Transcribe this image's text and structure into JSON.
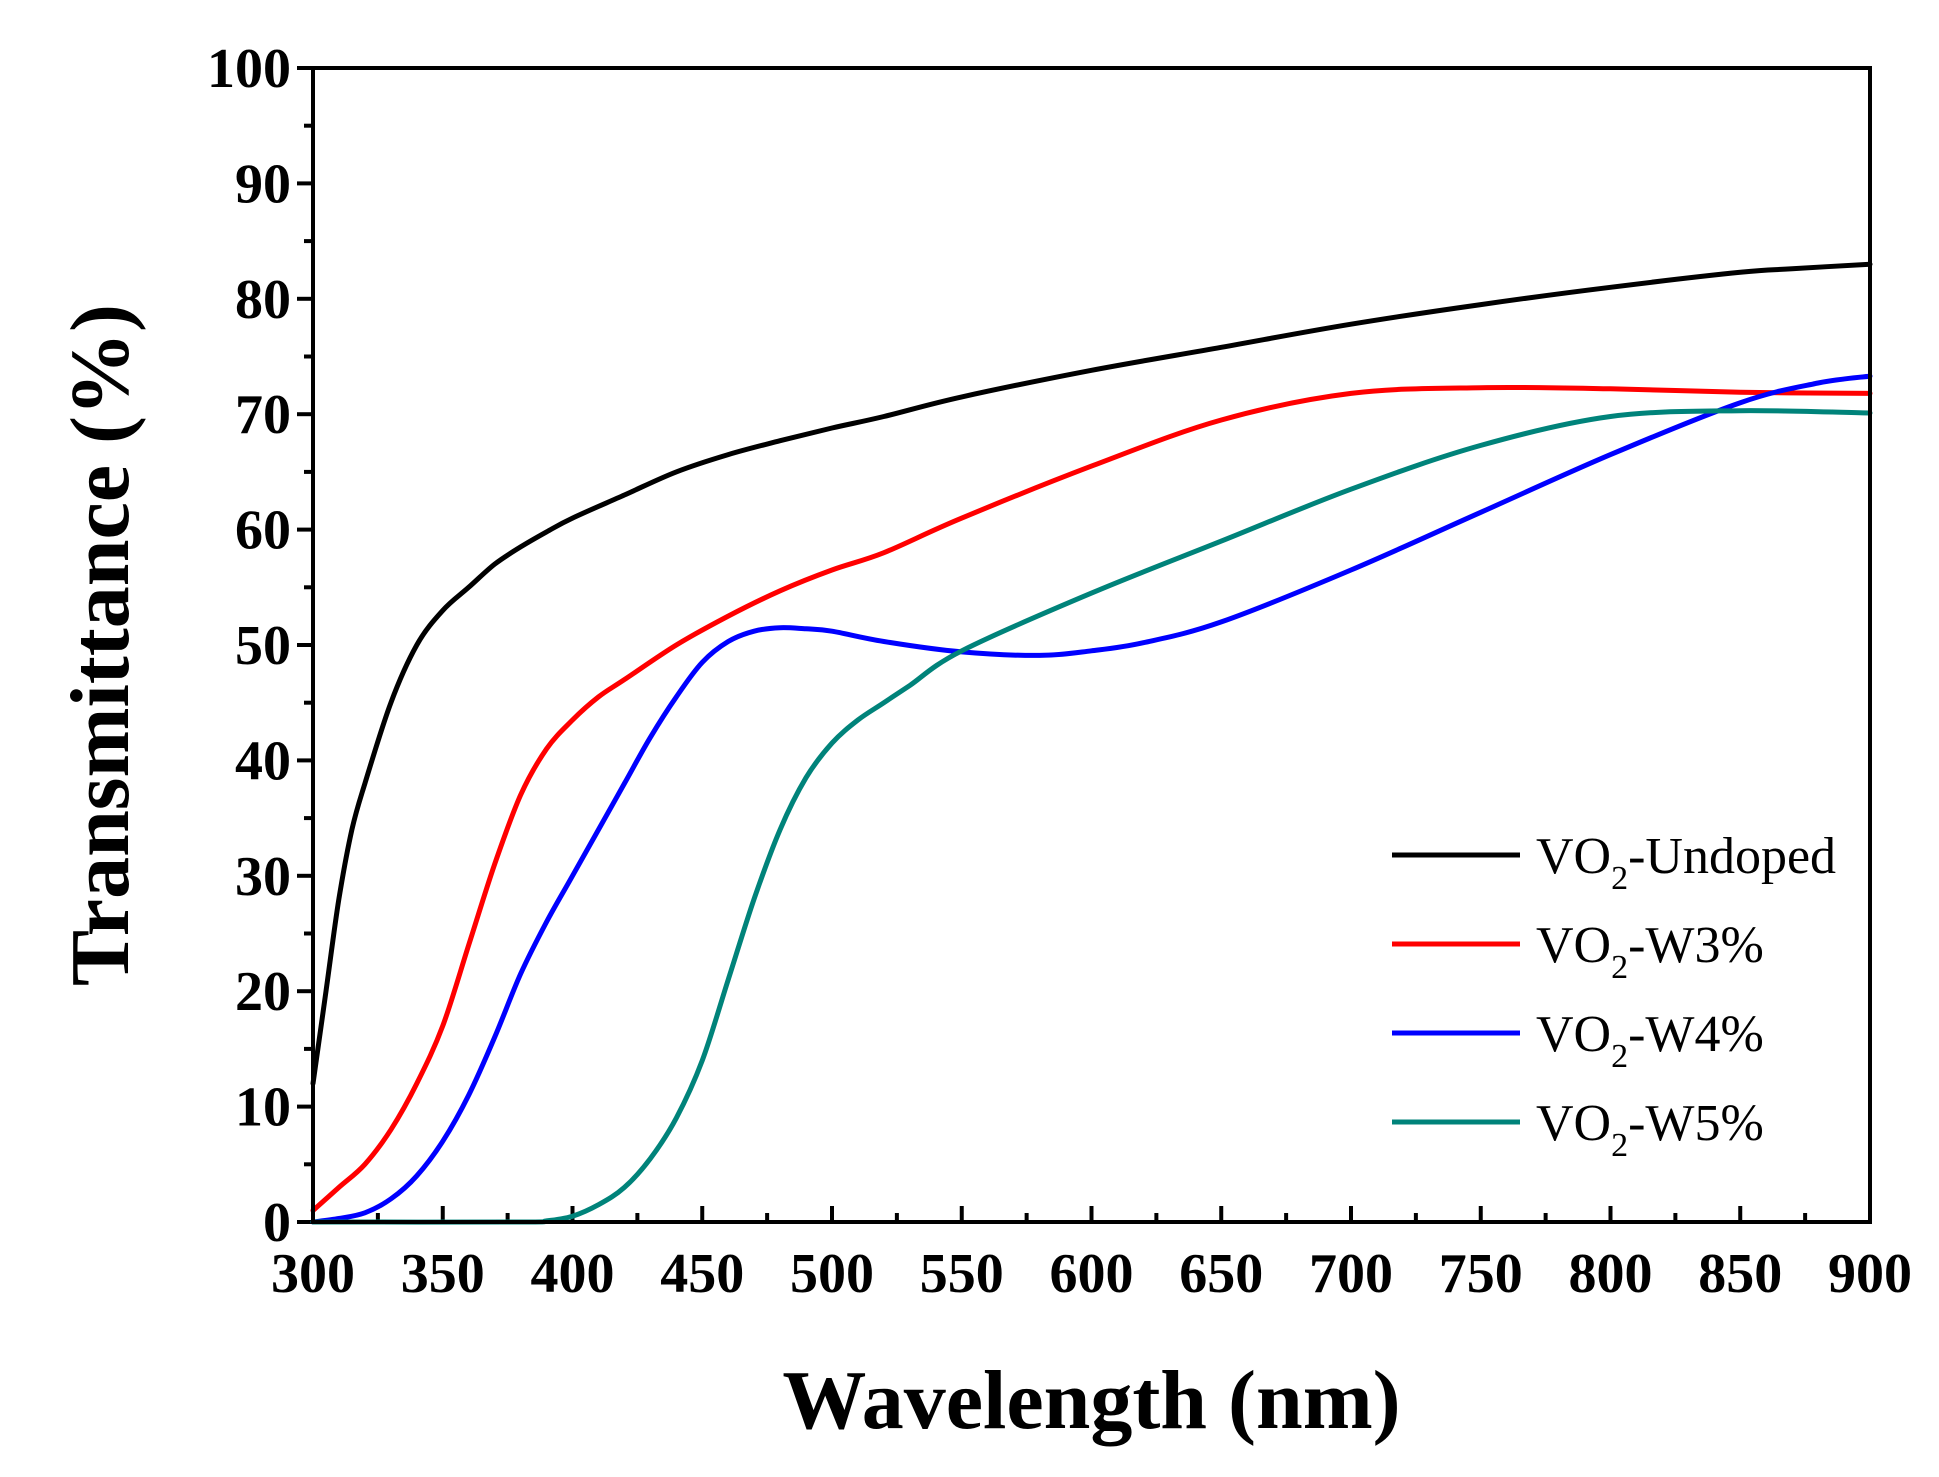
{
  "chart_data": {
    "type": "line",
    "title": "",
    "xlabel": "Wavelength (nm)",
    "ylabel": "Transmittance (%)",
    "xlim": [
      300,
      900
    ],
    "ylim": [
      0,
      100
    ],
    "xticks": [
      300,
      350,
      400,
      450,
      500,
      550,
      600,
      650,
      700,
      750,
      800,
      850,
      900
    ],
    "yticks": [
      0,
      10,
      20,
      30,
      40,
      50,
      60,
      70,
      80,
      90,
      100
    ],
    "x_tick_labels": [
      "300",
      "350",
      "400",
      "450",
      "500",
      "550",
      "600",
      "650",
      "700",
      "750",
      "800",
      "850",
      "900"
    ],
    "y_tick_labels": [
      "0",
      "10",
      "20",
      "30",
      "40",
      "50",
      "60",
      "70",
      "80",
      "90",
      "100"
    ],
    "grid": false,
    "legend_position": "right",
    "series": [
      {
        "name": "VO2-Undoped",
        "label_main": "VO",
        "label_sub": "2",
        "label_suffix": "-Undoped",
        "color": "#000000",
        "x": [
          300,
          305,
          310,
          315,
          320,
          330,
          340,
          350,
          360,
          370,
          380,
          390,
          400,
          420,
          440,
          460,
          480,
          500,
          520,
          550,
          600,
          650,
          700,
          750,
          800,
          850,
          870,
          900
        ],
        "y": [
          12,
          20,
          28,
          34,
          38,
          45,
          50,
          53,
          55,
          57,
          58.5,
          59.8,
          61,
          63,
          65,
          66.5,
          67.7,
          68.8,
          69.8,
          71.5,
          73.8,
          75.8,
          77.8,
          79.5,
          81,
          82.3,
          82.6,
          83
        ]
      },
      {
        "name": "VO2-W3%",
        "label_main": "VO",
        "label_sub": "2",
        "label_suffix": "-W3%",
        "color": "#ff0000",
        "x": [
          300,
          310,
          320,
          330,
          340,
          350,
          360,
          370,
          380,
          390,
          400,
          410,
          420,
          440,
          460,
          480,
          500,
          520,
          550,
          600,
          650,
          700,
          750,
          800,
          850,
          900
        ],
        "y": [
          1,
          3,
          5,
          8,
          12,
          17,
          24,
          31,
          37,
          41,
          43.5,
          45.5,
          47,
          50,
          52.5,
          54.7,
          56.5,
          58,
          61,
          65.5,
          69.5,
          71.8,
          72.3,
          72.2,
          71.9,
          71.8
        ]
      },
      {
        "name": "VO2-W4%",
        "label_main": "VO",
        "label_sub": "2",
        "label_suffix": "-W4%",
        "color": "#0000ff",
        "x": [
          300,
          310,
          320,
          330,
          340,
          350,
          360,
          370,
          380,
          390,
          400,
          410,
          420,
          430,
          440,
          450,
          460,
          470,
          480,
          490,
          500,
          520,
          550,
          580,
          600,
          620,
          650,
          700,
          750,
          800,
          850,
          880,
          900
        ],
        "y": [
          0,
          0.3,
          0.8,
          2,
          4,
          7,
          11,
          16,
          21.5,
          26,
          30,
          34,
          38,
          42,
          45.5,
          48.5,
          50.3,
          51.2,
          51.5,
          51.4,
          51.2,
          50.3,
          49.4,
          49.1,
          49.5,
          50.2,
          52,
          56.5,
          61.5,
          66.5,
          71,
          72.7,
          73.3
        ]
      },
      {
        "name": "VO2-W5%",
        "label_main": "VO",
        "label_sub": "2",
        "label_suffix": "-W5%",
        "color": "#00837a",
        "x": [
          300,
          380,
          390,
          400,
          410,
          420,
          430,
          440,
          450,
          460,
          470,
          480,
          490,
          500,
          510,
          520,
          530,
          550,
          600,
          650,
          700,
          750,
          800,
          850,
          900
        ],
        "y": [
          0,
          0,
          0.1,
          0.5,
          1.5,
          3,
          5.5,
          9,
          14,
          21,
          28,
          34,
          38.5,
          41.5,
          43.5,
          45,
          46.5,
          49.5,
          54.5,
          59,
          63.5,
          67.3,
          69.8,
          70.3,
          70.1
        ]
      }
    ]
  }
}
